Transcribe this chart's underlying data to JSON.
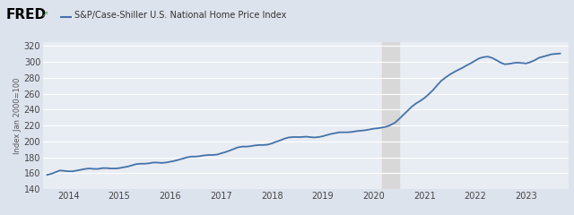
{
  "title": "S&P/Case-Shiller U.S. National Home Price Index",
  "ylabel": "Index Jan 2000=100",
  "ylim": [
    140,
    325
  ],
  "yticks": [
    140,
    160,
    180,
    200,
    220,
    240,
    260,
    280,
    300,
    320
  ],
  "xlim_start": 2013.5,
  "xlim_end": 2023.83,
  "xtick_years": [
    2014,
    2015,
    2016,
    2017,
    2018,
    2019,
    2020,
    2021,
    2022,
    2023
  ],
  "recession_start": 2020.17,
  "recession_end": 2020.5,
  "line_color": "#4472a8",
  "line_width": 1.3,
  "header_bg": "#dde3ed",
  "plot_bg_color": "#dde3ed",
  "chart_bg_color": "#e8ecf3",
  "grid_color": "#ffffff",
  "recession_color": "#d8d8d8",
  "data": [
    [
      2013.58,
      158.0
    ],
    [
      2013.67,
      159.5
    ],
    [
      2013.75,
      161.5
    ],
    [
      2013.83,
      163.5
    ],
    [
      2013.92,
      163.0
    ],
    [
      2014.0,
      162.5
    ],
    [
      2014.08,
      162.5
    ],
    [
      2014.17,
      163.5
    ],
    [
      2014.25,
      164.5
    ],
    [
      2014.33,
      165.5
    ],
    [
      2014.42,
      166.0
    ],
    [
      2014.5,
      165.5
    ],
    [
      2014.58,
      165.5
    ],
    [
      2014.67,
      166.5
    ],
    [
      2014.75,
      166.5
    ],
    [
      2014.83,
      166.0
    ],
    [
      2014.92,
      166.0
    ],
    [
      2015.0,
      166.5
    ],
    [
      2015.08,
      167.5
    ],
    [
      2015.17,
      168.5
    ],
    [
      2015.25,
      170.0
    ],
    [
      2015.33,
      171.5
    ],
    [
      2015.42,
      172.0
    ],
    [
      2015.5,
      172.0
    ],
    [
      2015.58,
      172.5
    ],
    [
      2015.67,
      173.5
    ],
    [
      2015.75,
      173.5
    ],
    [
      2015.83,
      173.0
    ],
    [
      2015.92,
      173.5
    ],
    [
      2016.0,
      174.5
    ],
    [
      2016.08,
      175.5
    ],
    [
      2016.17,
      177.0
    ],
    [
      2016.25,
      178.5
    ],
    [
      2016.33,
      180.0
    ],
    [
      2016.42,
      181.0
    ],
    [
      2016.5,
      181.0
    ],
    [
      2016.58,
      181.5
    ],
    [
      2016.67,
      182.5
    ],
    [
      2016.75,
      183.0
    ],
    [
      2016.83,
      183.0
    ],
    [
      2016.92,
      183.5
    ],
    [
      2017.0,
      185.0
    ],
    [
      2017.08,
      186.5
    ],
    [
      2017.17,
      188.5
    ],
    [
      2017.25,
      190.5
    ],
    [
      2017.33,
      192.5
    ],
    [
      2017.42,
      193.5
    ],
    [
      2017.5,
      193.5
    ],
    [
      2017.58,
      194.0
    ],
    [
      2017.67,
      195.0
    ],
    [
      2017.75,
      195.5
    ],
    [
      2017.83,
      195.5
    ],
    [
      2017.92,
      196.0
    ],
    [
      2018.0,
      197.5
    ],
    [
      2018.08,
      199.5
    ],
    [
      2018.17,
      201.5
    ],
    [
      2018.25,
      203.5
    ],
    [
      2018.33,
      205.0
    ],
    [
      2018.42,
      205.5
    ],
    [
      2018.5,
      205.5
    ],
    [
      2018.58,
      205.5
    ],
    [
      2018.67,
      206.0
    ],
    [
      2018.75,
      205.5
    ],
    [
      2018.83,
      205.0
    ],
    [
      2018.92,
      205.5
    ],
    [
      2019.0,
      206.5
    ],
    [
      2019.08,
      208.0
    ],
    [
      2019.17,
      209.5
    ],
    [
      2019.25,
      210.5
    ],
    [
      2019.33,
      211.5
    ],
    [
      2019.42,
      211.5
    ],
    [
      2019.5,
      211.5
    ],
    [
      2019.58,
      212.0
    ],
    [
      2019.67,
      213.0
    ],
    [
      2019.75,
      213.5
    ],
    [
      2019.83,
      214.0
    ],
    [
      2019.92,
      215.0
    ],
    [
      2020.0,
      216.0
    ],
    [
      2020.08,
      216.5
    ],
    [
      2020.17,
      217.5
    ],
    [
      2020.25,
      218.5
    ],
    [
      2020.33,
      220.5
    ],
    [
      2020.42,
      223.5
    ],
    [
      2020.5,
      228.0
    ],
    [
      2020.58,
      233.0
    ],
    [
      2020.67,
      238.5
    ],
    [
      2020.75,
      243.5
    ],
    [
      2020.83,
      247.5
    ],
    [
      2020.92,
      251.0
    ],
    [
      2021.0,
      254.5
    ],
    [
      2021.08,
      259.0
    ],
    [
      2021.17,
      264.5
    ],
    [
      2021.25,
      270.5
    ],
    [
      2021.33,
      276.0
    ],
    [
      2021.42,
      280.5
    ],
    [
      2021.5,
      284.0
    ],
    [
      2021.58,
      287.0
    ],
    [
      2021.67,
      290.0
    ],
    [
      2021.75,
      292.5
    ],
    [
      2021.83,
      295.5
    ],
    [
      2021.92,
      298.5
    ],
    [
      2022.0,
      301.5
    ],
    [
      2022.08,
      304.5
    ],
    [
      2022.17,
      306.0
    ],
    [
      2022.25,
      306.5
    ],
    [
      2022.33,
      305.0
    ],
    [
      2022.42,
      302.0
    ],
    [
      2022.5,
      299.0
    ],
    [
      2022.58,
      297.0
    ],
    [
      2022.67,
      297.5
    ],
    [
      2022.75,
      298.5
    ],
    [
      2022.83,
      299.0
    ],
    [
      2022.92,
      298.5
    ],
    [
      2023.0,
      298.0
    ],
    [
      2023.08,
      299.5
    ],
    [
      2023.17,
      302.0
    ],
    [
      2023.25,
      305.0
    ],
    [
      2023.42,
      308.0
    ],
    [
      2023.5,
      309.5
    ],
    [
      2023.67,
      310.5
    ]
  ]
}
